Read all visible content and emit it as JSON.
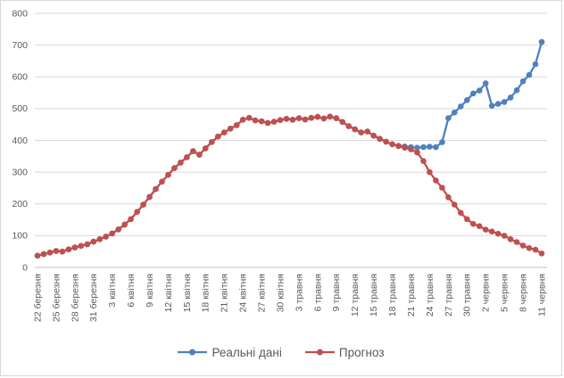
{
  "chart_data": {
    "type": "line",
    "title": "",
    "ylim": [
      0,
      800
    ],
    "y_ticks": [
      0,
      100,
      200,
      300,
      400,
      500,
      600,
      700,
      800
    ],
    "x_tick_labels": [
      "22 березня",
      "25 березня",
      "28 березня",
      "31 березня",
      "3 квітня",
      "6 квітня",
      "9 квітня",
      "12 квітня",
      "15 квітня",
      "18 квітня",
      "21 квітня",
      "24 квітня",
      "27 квітня",
      "30 квітня",
      "3 травня",
      "6 травня",
      "9 травня",
      "12 травня",
      "15 травня",
      "18 травня",
      "21 травня",
      "24 травня",
      "27 травня",
      "30 травня",
      "2 червня",
      "5 червня",
      "8 червня",
      "11 червня"
    ],
    "points_per_tick": 3,
    "grid": "horizontal-only",
    "legend_position": "bottom-center",
    "background": "#ffffff",
    "gridline_color": "#d9d9d9",
    "axis_line_color": "#bfbfbf",
    "axis_label_color": "#595959",
    "series": [
      {
        "name": "Реальні дані",
        "color": "#4f81bd",
        "marker": "circle",
        "values": [
          37,
          42,
          47,
          52,
          50,
          57,
          63,
          68,
          73,
          81,
          89,
          97,
          107,
          120,
          135,
          152,
          175,
          198,
          222,
          247,
          270,
          292,
          313,
          330,
          347,
          366,
          355,
          375,
          395,
          412,
          425,
          437,
          448,
          465,
          471,
          463,
          460,
          455,
          459,
          464,
          468,
          465,
          470,
          466,
          471,
          474,
          469,
          475,
          470,
          458,
          445,
          435,
          425,
          428,
          415,
          405,
          396,
          388,
          383,
          381,
          379,
          377,
          379,
          380,
          379,
          394,
          470,
          488,
          507,
          527,
          548,
          557,
          580,
          509,
          515,
          521,
          535,
          558,
          586,
          606,
          640,
          710
        ]
      },
      {
        "name": "Прогноз",
        "color": "#c0504d",
        "marker": "circle",
        "values": [
          37,
          42,
          47,
          52,
          50,
          57,
          63,
          68,
          73,
          81,
          89,
          97,
          107,
          120,
          135,
          152,
          175,
          198,
          222,
          247,
          270,
          292,
          313,
          330,
          347,
          366,
          355,
          375,
          395,
          412,
          425,
          437,
          448,
          465,
          471,
          463,
          460,
          455,
          459,
          464,
          468,
          465,
          470,
          466,
          471,
          474,
          469,
          475,
          470,
          458,
          445,
          435,
          425,
          428,
          415,
          405,
          396,
          388,
          382,
          377,
          372,
          362,
          335,
          300,
          274,
          251,
          221,
          198,
          172,
          152,
          137,
          130,
          119,
          113,
          106,
          100,
          89,
          80,
          69,
          61,
          56,
          44
        ]
      }
    ]
  }
}
